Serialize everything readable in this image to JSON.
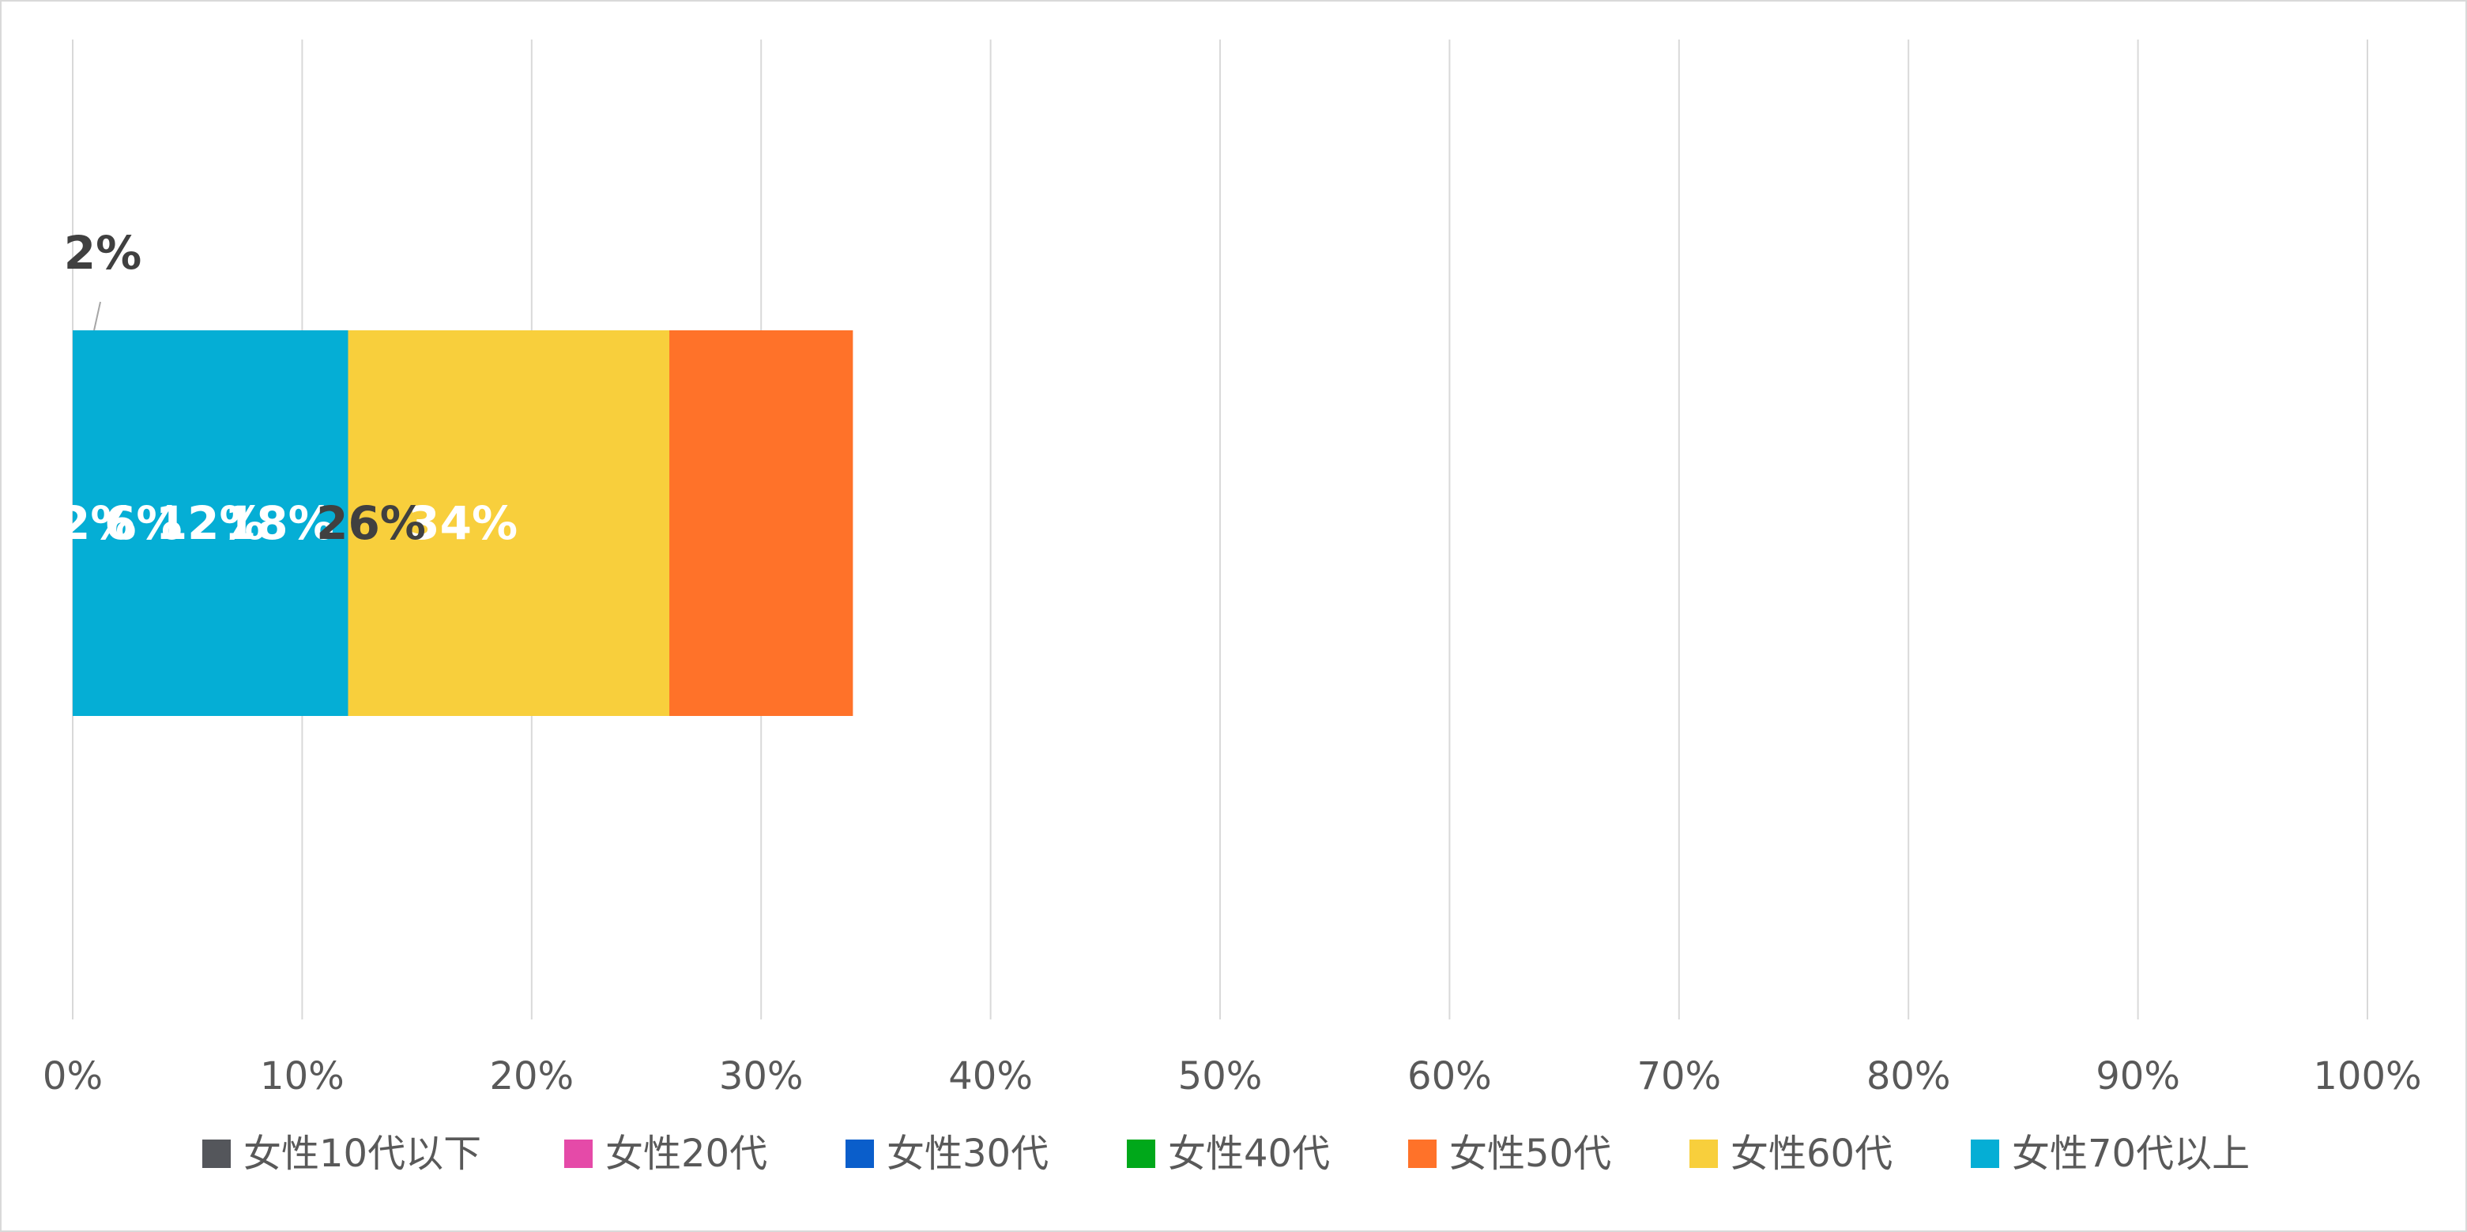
{
  "chart_data": {
    "type": "bar",
    "orientation": "horizontal",
    "stacked": "percent",
    "categories": [
      ""
    ],
    "series": [
      {
        "name": "女性10代以下",
        "values": [
          2
        ],
        "label": "2%",
        "color": "#54565b",
        "label_color": "#404040"
      },
      {
        "name": "女性20代",
        "values": [
          2
        ],
        "label": "2%",
        "color": "#e54aa8",
        "label_color": "#ffffff"
      },
      {
        "name": "女性30代",
        "values": [
          6
        ],
        "label": "6%",
        "color": "#0a5ecb",
        "label_color": "#ffffff"
      },
      {
        "name": "女性40代",
        "values": [
          18
        ],
        "label": "18%",
        "color": "#00a81a",
        "label_color": "#ffffff"
      },
      {
        "name": "女性50代",
        "values": [
          34
        ],
        "label": "34%",
        "color": "#ff7229",
        "label_color": "#ffffff"
      },
      {
        "name": "女性60代",
        "values": [
          26
        ],
        "label": "26%",
        "color": "#f8cf3c",
        "label_color": "#404040"
      },
      {
        "name": "女性70代以上",
        "values": [
          12
        ],
        "label": "12%",
        "color": "#05aed5",
        "label_color": "#ffffff"
      }
    ],
    "x_ticks": [
      "0%",
      "10%",
      "20%",
      "30%",
      "40%",
      "50%",
      "60%",
      "70%",
      "80%",
      "90%",
      "100%"
    ],
    "xlim": [
      0,
      100
    ],
    "grid": "vertical",
    "legend": "bottom",
    "title": "",
    "xlabel": "",
    "ylabel": ""
  }
}
